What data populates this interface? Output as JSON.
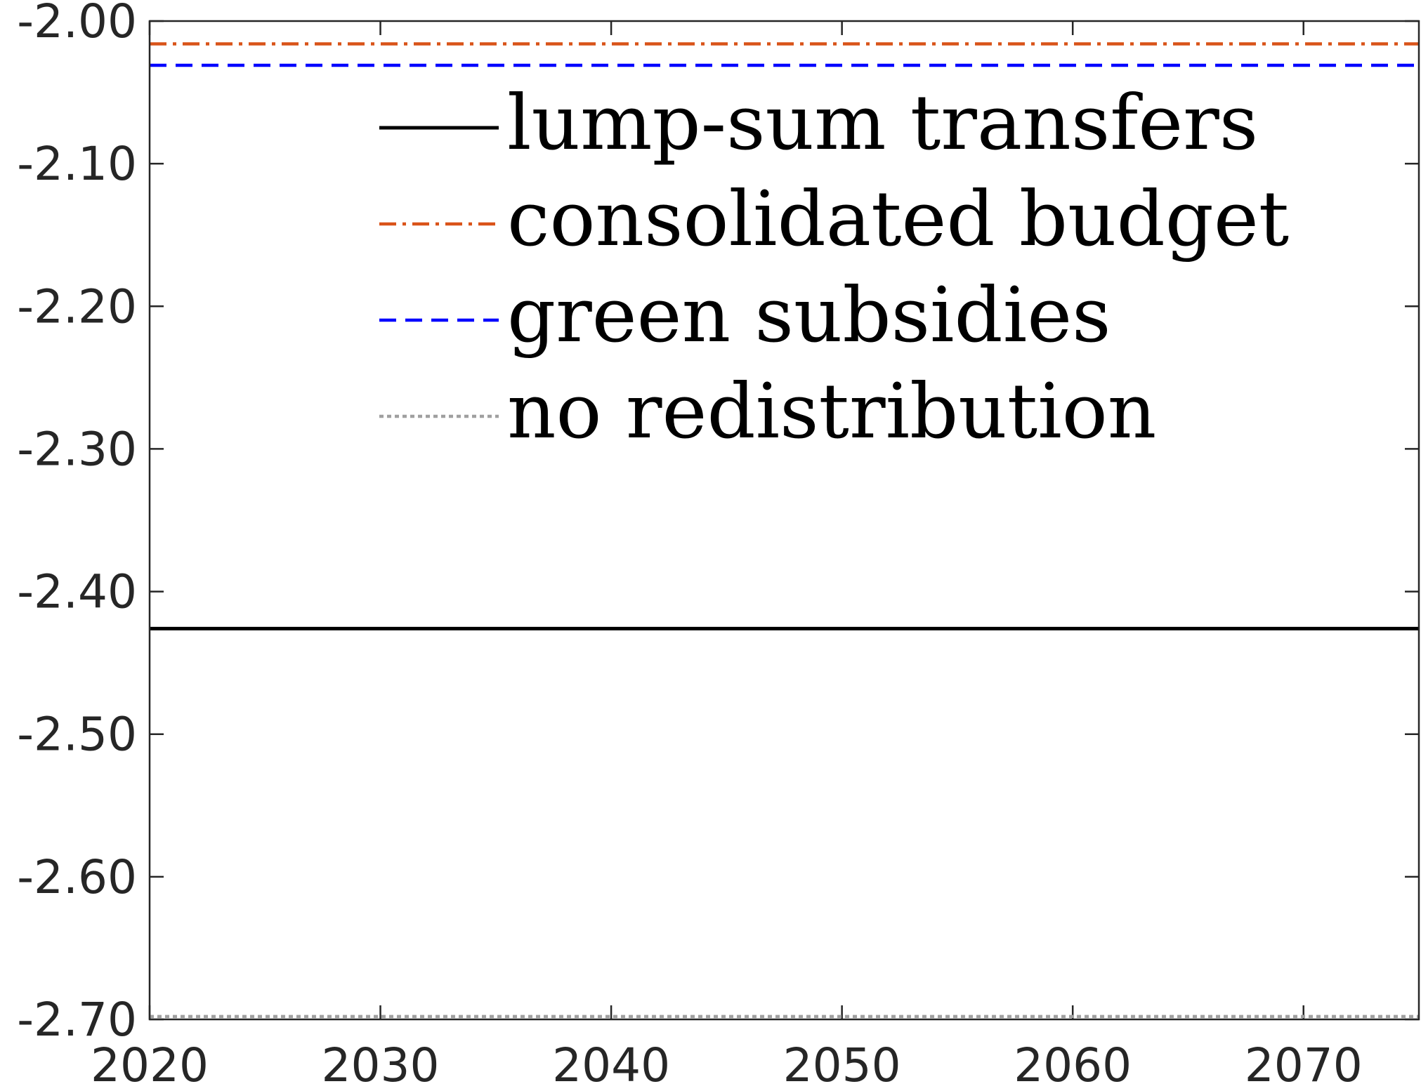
{
  "chart_data": {
    "type": "line",
    "x_range": [
      2020,
      2075
    ],
    "ylim": [
      -2.7,
      -2.0
    ],
    "y_ticks": [
      -2.0,
      -2.1,
      -2.2,
      -2.3,
      -2.4,
      -2.5,
      -2.6,
      -2.7
    ],
    "y_tick_labels": [
      "-2.00",
      "-2.10",
      "-2.20",
      "-2.30",
      "-2.40",
      "-2.50",
      "-2.60",
      "-2.70"
    ],
    "x_ticks": [
      2020,
      2030,
      2040,
      2050,
      2060,
      2070
    ],
    "x_tick_labels": [
      "2020",
      "2030",
      "2040",
      "2050",
      "2060",
      "2070"
    ],
    "grid": false,
    "legend_position": "top-center",
    "series": [
      {
        "name": "lump-sum transfers",
        "color": "#000000",
        "dash": "solid",
        "x": [
          2020,
          2075
        ],
        "y": [
          -2.426,
          -2.426
        ]
      },
      {
        "name": "consolidated budget",
        "color": "#D95319",
        "dash": "dashdot",
        "x": [
          2020,
          2075
        ],
        "y": [
          -2.016,
          -2.016
        ]
      },
      {
        "name": "green subsidies",
        "color": "#0000FF",
        "dash": "dashed",
        "x": [
          2020,
          2075
        ],
        "y": [
          -2.031,
          -2.031
        ]
      },
      {
        "name": "no redistribution",
        "color": "#A0A0A0",
        "dash": "dotted",
        "x": [
          2020,
          2075
        ],
        "y": [
          -2.698,
          -2.698
        ]
      }
    ]
  }
}
